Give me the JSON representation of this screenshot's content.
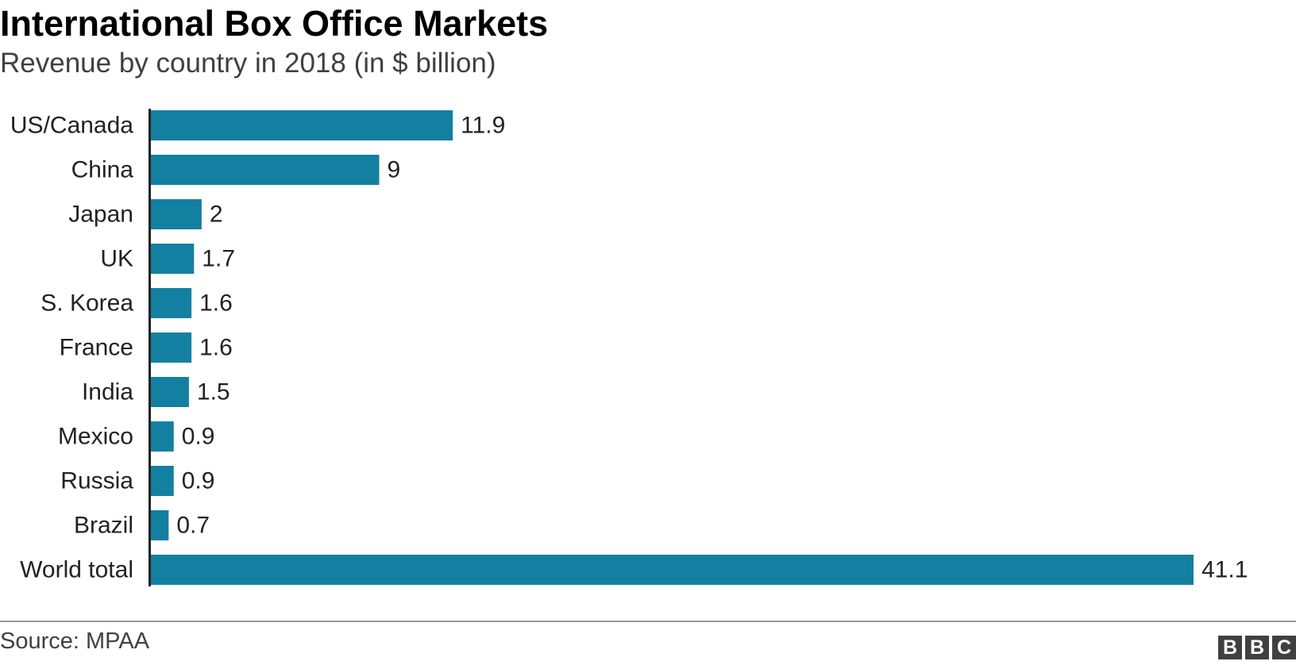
{
  "chart_data": {
    "type": "bar",
    "orientation": "horizontal",
    "title": "International Box Office Markets",
    "subtitle": "Revenue by country in 2018 (in $ billion)",
    "categories": [
      "US/Canada",
      "China",
      "Japan",
      "UK",
      "S. Korea",
      "France",
      "India",
      "Mexico",
      "Russia",
      "Brazil",
      "World total"
    ],
    "values": [
      11.9,
      9,
      2,
      1.7,
      1.6,
      1.6,
      1.5,
      0.9,
      0.9,
      0.7,
      41.1
    ],
    "data_labels": [
      "11.9",
      "9",
      "2",
      "1.7",
      "1.6",
      "1.6",
      "1.5",
      "0.9",
      "0.9",
      "0.7",
      "41.1"
    ],
    "xlabel": "",
    "ylabel": "",
    "xlim": [
      0,
      41.1
    ],
    "grid": false,
    "bar_color": "#1380A1",
    "axis_color": "#222222"
  },
  "footer": {
    "source": "Source: MPAA",
    "logo_letters": [
      "B",
      "B",
      "C"
    ],
    "logo_color": "#404040"
  }
}
